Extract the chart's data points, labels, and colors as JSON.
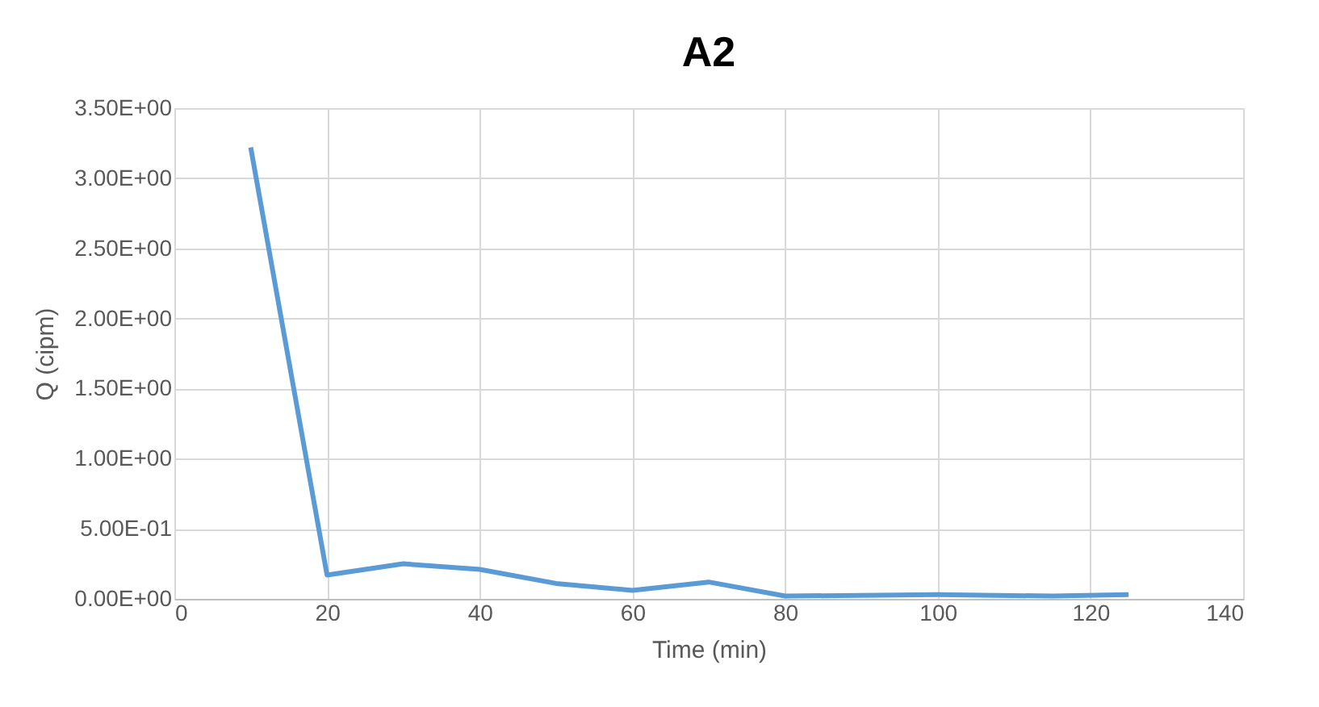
{
  "chart_data": {
    "type": "line",
    "title": "A2",
    "xlabel": "Time (min)",
    "ylabel": "Q (cipm)",
    "x": [
      10,
      20,
      30,
      40,
      50,
      60,
      70,
      80,
      100,
      115,
      125
    ],
    "series": [
      {
        "color": "#5b9bd5",
        "values": [
          3.22,
          0.17,
          0.25,
          0.21,
          0.11,
          0.06,
          0.12,
          0.02,
          0.03,
          0.02,
          0.03
        ]
      }
    ],
    "xlim": [
      0,
      140
    ],
    "xticks": [
      0,
      20,
      40,
      60,
      80,
      100,
      120,
      140
    ],
    "ylim": [
      0,
      3.5
    ],
    "yticks": [
      {
        "value": 0,
        "label": "0.00E+00"
      },
      {
        "value": 0.5,
        "label": "5.00E-01"
      },
      {
        "value": 1,
        "label": "1.00E+00"
      },
      {
        "value": 1.5,
        "label": "1.50E+00"
      },
      {
        "value": 2,
        "label": "2.00E+00"
      },
      {
        "value": 2.5,
        "label": "2.50E+00"
      },
      {
        "value": 3,
        "label": "3.00E+00"
      },
      {
        "value": 3.5,
        "label": "3.50E+00"
      }
    ],
    "grid": true,
    "marker": "none",
    "line_style": "solid"
  }
}
